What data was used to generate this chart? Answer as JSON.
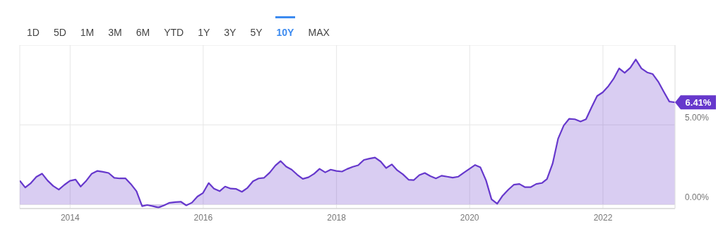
{
  "chart_data": {
    "type": "area",
    "x": [
      "2013-03-31",
      "2013-04-30",
      "2013-05-31",
      "2013-06-30",
      "2013-07-31",
      "2013-08-31",
      "2013-09-30",
      "2013-10-31",
      "2013-11-30",
      "2013-12-31",
      "2014-01-31",
      "2014-02-28",
      "2014-03-31",
      "2014-04-30",
      "2014-05-31",
      "2014-06-30",
      "2014-07-31",
      "2014-08-31",
      "2014-09-30",
      "2014-10-31",
      "2014-11-30",
      "2014-12-31",
      "2015-01-31",
      "2015-02-28",
      "2015-03-31",
      "2015-04-30",
      "2015-05-31",
      "2015-06-30",
      "2015-07-31",
      "2015-08-31",
      "2015-09-30",
      "2015-10-31",
      "2015-11-30",
      "2015-12-31",
      "2016-01-31",
      "2016-02-29",
      "2016-03-31",
      "2016-04-30",
      "2016-05-31",
      "2016-06-30",
      "2016-07-31",
      "2016-08-31",
      "2016-09-30",
      "2016-10-31",
      "2016-11-30",
      "2016-12-31",
      "2017-01-31",
      "2017-02-28",
      "2017-03-31",
      "2017-04-30",
      "2017-05-31",
      "2017-06-30",
      "2017-07-31",
      "2017-08-31",
      "2017-09-30",
      "2017-10-31",
      "2017-11-30",
      "2017-12-31",
      "2018-01-31",
      "2018-02-28",
      "2018-03-31",
      "2018-04-30",
      "2018-05-31",
      "2018-06-30",
      "2018-07-31",
      "2018-08-31",
      "2018-09-30",
      "2018-10-31",
      "2018-11-30",
      "2018-12-31",
      "2019-01-31",
      "2019-02-28",
      "2019-03-31",
      "2019-04-30",
      "2019-05-31",
      "2019-06-30",
      "2019-07-31",
      "2019-08-31",
      "2019-09-30",
      "2019-10-31",
      "2019-11-30",
      "2019-12-31",
      "2020-01-31",
      "2020-02-29",
      "2020-03-31",
      "2020-04-30",
      "2020-05-31",
      "2020-06-30",
      "2020-07-31",
      "2020-08-31",
      "2020-09-30",
      "2020-10-31",
      "2020-11-30",
      "2020-12-31",
      "2021-01-31",
      "2021-02-28",
      "2021-03-31",
      "2021-04-30",
      "2021-05-31",
      "2021-06-30",
      "2021-07-31",
      "2021-08-31",
      "2021-09-30",
      "2021-10-31",
      "2021-11-30",
      "2021-12-31",
      "2022-01-31",
      "2022-02-28",
      "2022-03-31",
      "2022-04-30",
      "2022-05-31",
      "2022-06-30",
      "2022-07-31",
      "2022-08-31",
      "2022-09-30",
      "2022-10-31",
      "2022-11-30",
      "2022-12-31",
      "2023-01-31"
    ],
    "series": [
      {
        "color": "#6638cc",
        "values": [
          1.5,
          1.07,
          1.35,
          1.74,
          1.94,
          1.5,
          1.17,
          0.94,
          1.23,
          1.49,
          1.57,
          1.13,
          1.5,
          1.94,
          2.11,
          2.05,
          1.98,
          1.68,
          1.64,
          1.65,
          1.29,
          0.84,
          -0.1,
          -0.03,
          -0.1,
          -0.19,
          -0.05,
          0.11,
          0.15,
          0.18,
          -0.05,
          0.12,
          0.5,
          0.73,
          1.35,
          1.0,
          0.84,
          1.13,
          1.0,
          0.98,
          0.8,
          1.05,
          1.46,
          1.64,
          1.68,
          2.01,
          2.45,
          2.73,
          2.38,
          2.19,
          1.87,
          1.61,
          1.71,
          1.93,
          2.24,
          2.02,
          2.19,
          2.11,
          2.07,
          2.23,
          2.37,
          2.47,
          2.8,
          2.88,
          2.95,
          2.7,
          2.29,
          2.52,
          2.15,
          1.9,
          1.56,
          1.53,
          1.85,
          1.98,
          1.78,
          1.64,
          1.81,
          1.75,
          1.69,
          1.75,
          2.0,
          2.24,
          2.48,
          2.33,
          1.51,
          0.33,
          0.05,
          0.56,
          0.93,
          1.25,
          1.29,
          1.09,
          1.09,
          1.29,
          1.35,
          1.6,
          2.57,
          4.13,
          4.96,
          5.38,
          5.35,
          5.21,
          5.35,
          6.11,
          6.81,
          7.04,
          7.43,
          7.88,
          8.54,
          8.26,
          8.58,
          9.1,
          8.54,
          8.29,
          8.19,
          7.71,
          7.08,
          6.46,
          6.41
        ]
      }
    ],
    "xlim": [
      "2013-03-31",
      "2023-01-31"
    ],
    "xticks": [
      "2014",
      "2016",
      "2018",
      "2020",
      "2022"
    ],
    "ylim": [
      -0.25,
      10
    ],
    "yticks": [
      {
        "value": 0,
        "label": "0.00%"
      },
      {
        "value": 5,
        "label": "5.00%"
      },
      {
        "value": 10,
        "label": null
      }
    ],
    "grid": true,
    "annotations": [
      "1D",
      "5D",
      "1M",
      "3M",
      "6M",
      "YTD",
      "1Y",
      "3Y",
      "5Y",
      "10Y",
      "MAX",
      {
        "text": "6.41%",
        "x": "2023-01-31",
        "y": 6.41
      }
    ]
  }
}
